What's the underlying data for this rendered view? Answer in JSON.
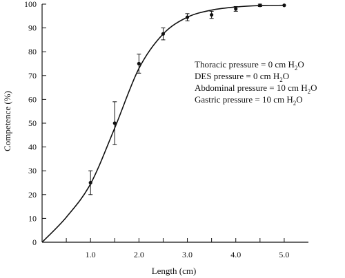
{
  "chart_data": {
    "type": "line",
    "title": "",
    "xlabel": "Length (cm)",
    "ylabel": "Competence (%)",
    "xlim": [
      0,
      5.5
    ],
    "ylim": [
      0,
      100
    ],
    "x_ticks": [
      0.5,
      1.0,
      1.5,
      2.0,
      2.5,
      3.0,
      3.5,
      4.0,
      4.5,
      5.0
    ],
    "x_tick_labels": [
      "1.0",
      "2.0",
      "3.0",
      "4.0",
      "5.0"
    ],
    "x_tick_label_values": [
      1.0,
      2.0,
      3.0,
      4.0,
      5.0
    ],
    "y_ticks": [
      0,
      10,
      20,
      30,
      40,
      50,
      60,
      70,
      80,
      90,
      100
    ],
    "y_tick_labels": [
      "0",
      "10",
      "20",
      "30",
      "40",
      "50",
      "60",
      "70",
      "80",
      "90",
      "100"
    ],
    "grid": false,
    "series": [
      {
        "points": [
          {
            "x": 1.0,
            "y": 25,
            "lo": 20,
            "hi": 30
          },
          {
            "x": 1.5,
            "y": 50,
            "lo": 41,
            "hi": 59
          },
          {
            "x": 2.0,
            "y": 75,
            "lo": 71,
            "hi": 79
          },
          {
            "x": 2.5,
            "y": 87.5,
            "lo": 85,
            "hi": 90
          },
          {
            "x": 3.0,
            "y": 94.5,
            "lo": 93,
            "hi": 96
          },
          {
            "x": 3.5,
            "y": 95.5,
            "lo": 94,
            "hi": 97
          },
          {
            "x": 4.0,
            "y": 98,
            "lo": 97,
            "hi": 99
          },
          {
            "x": 4.5,
            "y": 99.5,
            "lo": 99,
            "hi": 100
          },
          {
            "x": 5.0,
            "y": 99.5,
            "lo": 99.5,
            "hi": 99.5
          }
        ],
        "fit_curve": [
          [
            0,
            0
          ],
          [
            0.5,
            10.5
          ],
          [
            1.0,
            24.5
          ],
          [
            1.5,
            48
          ],
          [
            2.0,
            73
          ],
          [
            2.5,
            87.5
          ],
          [
            3.0,
            94.5
          ],
          [
            3.5,
            97.5
          ],
          [
            4.0,
            98.8
          ],
          [
            4.5,
            99.4
          ],
          [
            5.0,
            99.5
          ]
        ]
      }
    ],
    "annotations": [
      {
        "pre": "Thoracic pressure = 0 cm H",
        "sub": "2",
        "post": "O"
      },
      {
        "pre": "DES pressure = 0 cm H",
        "sub": "2",
        "post": "O"
      },
      {
        "pre": "Abdominal pressure = 10 cm H",
        "sub": "2",
        "post": "O"
      },
      {
        "pre": "Gastric pressure = 10 cm H",
        "sub": "2",
        "post": "O"
      }
    ]
  }
}
